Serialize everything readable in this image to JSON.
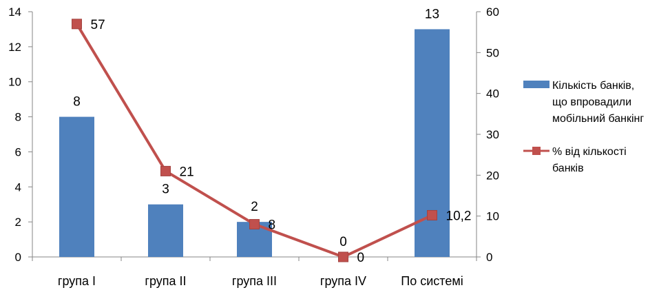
{
  "chart_data": {
    "type": "bar",
    "categories": [
      "група І",
      "група ІІ",
      "група ІІІ",
      "група ІV",
      "По системі"
    ],
    "series": [
      {
        "name": "Кількість банків, що впровадили мобільний банкінг",
        "name_lines": [
          "Кількість банків,",
          "що впровадили",
          "мобільний банкінг"
        ],
        "type": "bar",
        "axis": "left",
        "color": "#4F81BD",
        "values": [
          8,
          3,
          2,
          0,
          13
        ],
        "labels": [
          "8",
          "3",
          "2",
          "0",
          "13"
        ]
      },
      {
        "name": "% від кількості банків",
        "name_lines": [
          "% від кількості",
          "банків"
        ],
        "type": "line",
        "axis": "right",
        "color": "#C0504D",
        "values": [
          57,
          21,
          8,
          0,
          10.2
        ],
        "labels": [
          "57",
          "21",
          "8",
          "0",
          "10,2"
        ]
      }
    ],
    "y_left": {
      "min": 0,
      "max": 14,
      "step": 2
    },
    "y_right": {
      "min": 0,
      "max": 60,
      "step": 10
    },
    "grid": false,
    "legend": "right"
  }
}
